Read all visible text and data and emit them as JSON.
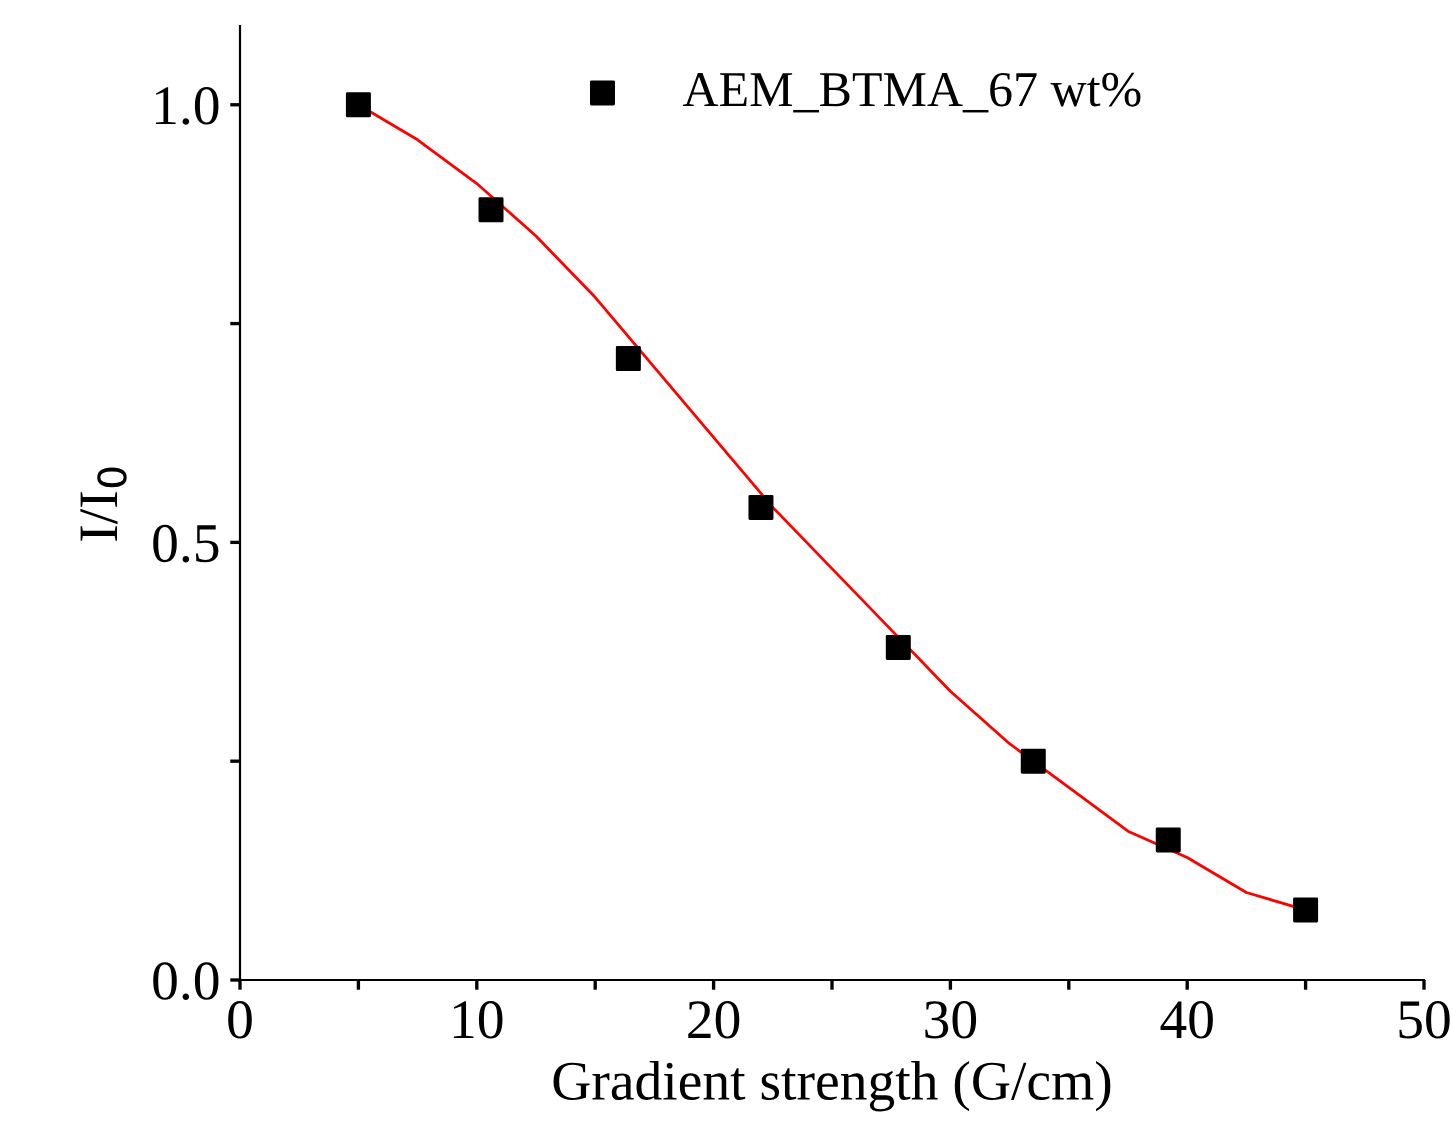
{
  "chart_data": {
    "type": "scatter",
    "xlabel": "Gradient strength (G/cm)",
    "ylabel": "I/I$_{0}$",
    "xlim": [
      0,
      50
    ],
    "xticks": [
      0,
      {
        "value": 5,
        "label": null
      },
      10,
      {
        "value": 15,
        "label": null
      },
      20,
      {
        "value": 25,
        "label": null
      },
      30,
      {
        "value": 35,
        "label": null
      },
      40,
      {
        "value": 45,
        "label": null
      },
      50
    ],
    "ylim": [
      0,
      1.09
    ],
    "yticks": [
      {
        "value": 0,
        "label": "0.0"
      },
      {
        "value": 0.25,
        "label": null
      },
      0.5,
      {
        "value": 0.75,
        "label": null
      },
      {
        "value": 1,
        "label": "1.0"
      }
    ],
    "grid": false,
    "legend": "top right",
    "marker": "square",
    "series": [
      {
        "name": "AEM_BTMA_67 wt%",
        "color": "#000000",
        "x": [
          5,
          10.6,
          16.4,
          22.0,
          27.8,
          33.5,
          39.2,
          45.0
        ],
        "values": [
          1.0,
          0.88,
          0.71,
          0.54,
          0.38,
          0.25,
          0.16,
          0.08
        ]
      },
      {
        "type": "line",
        "color": "#ff0000",
        "marker": "none",
        "line_style": "solid",
        "x": [
          5,
          7.5,
          10,
          12.5,
          15,
          17.5,
          20,
          22.5,
          25,
          27.5,
          30,
          32.5,
          35,
          37.5,
          40,
          42.5,
          45
        ],
        "values": [
          1.0,
          0.96,
          0.91,
          0.85,
          0.78,
          0.7,
          0.62,
          0.54,
          0.47,
          0.4,
          0.33,
          0.27,
          0.22,
          0.17,
          0.14,
          0.1,
          0.08
        ]
      }
    ]
  }
}
